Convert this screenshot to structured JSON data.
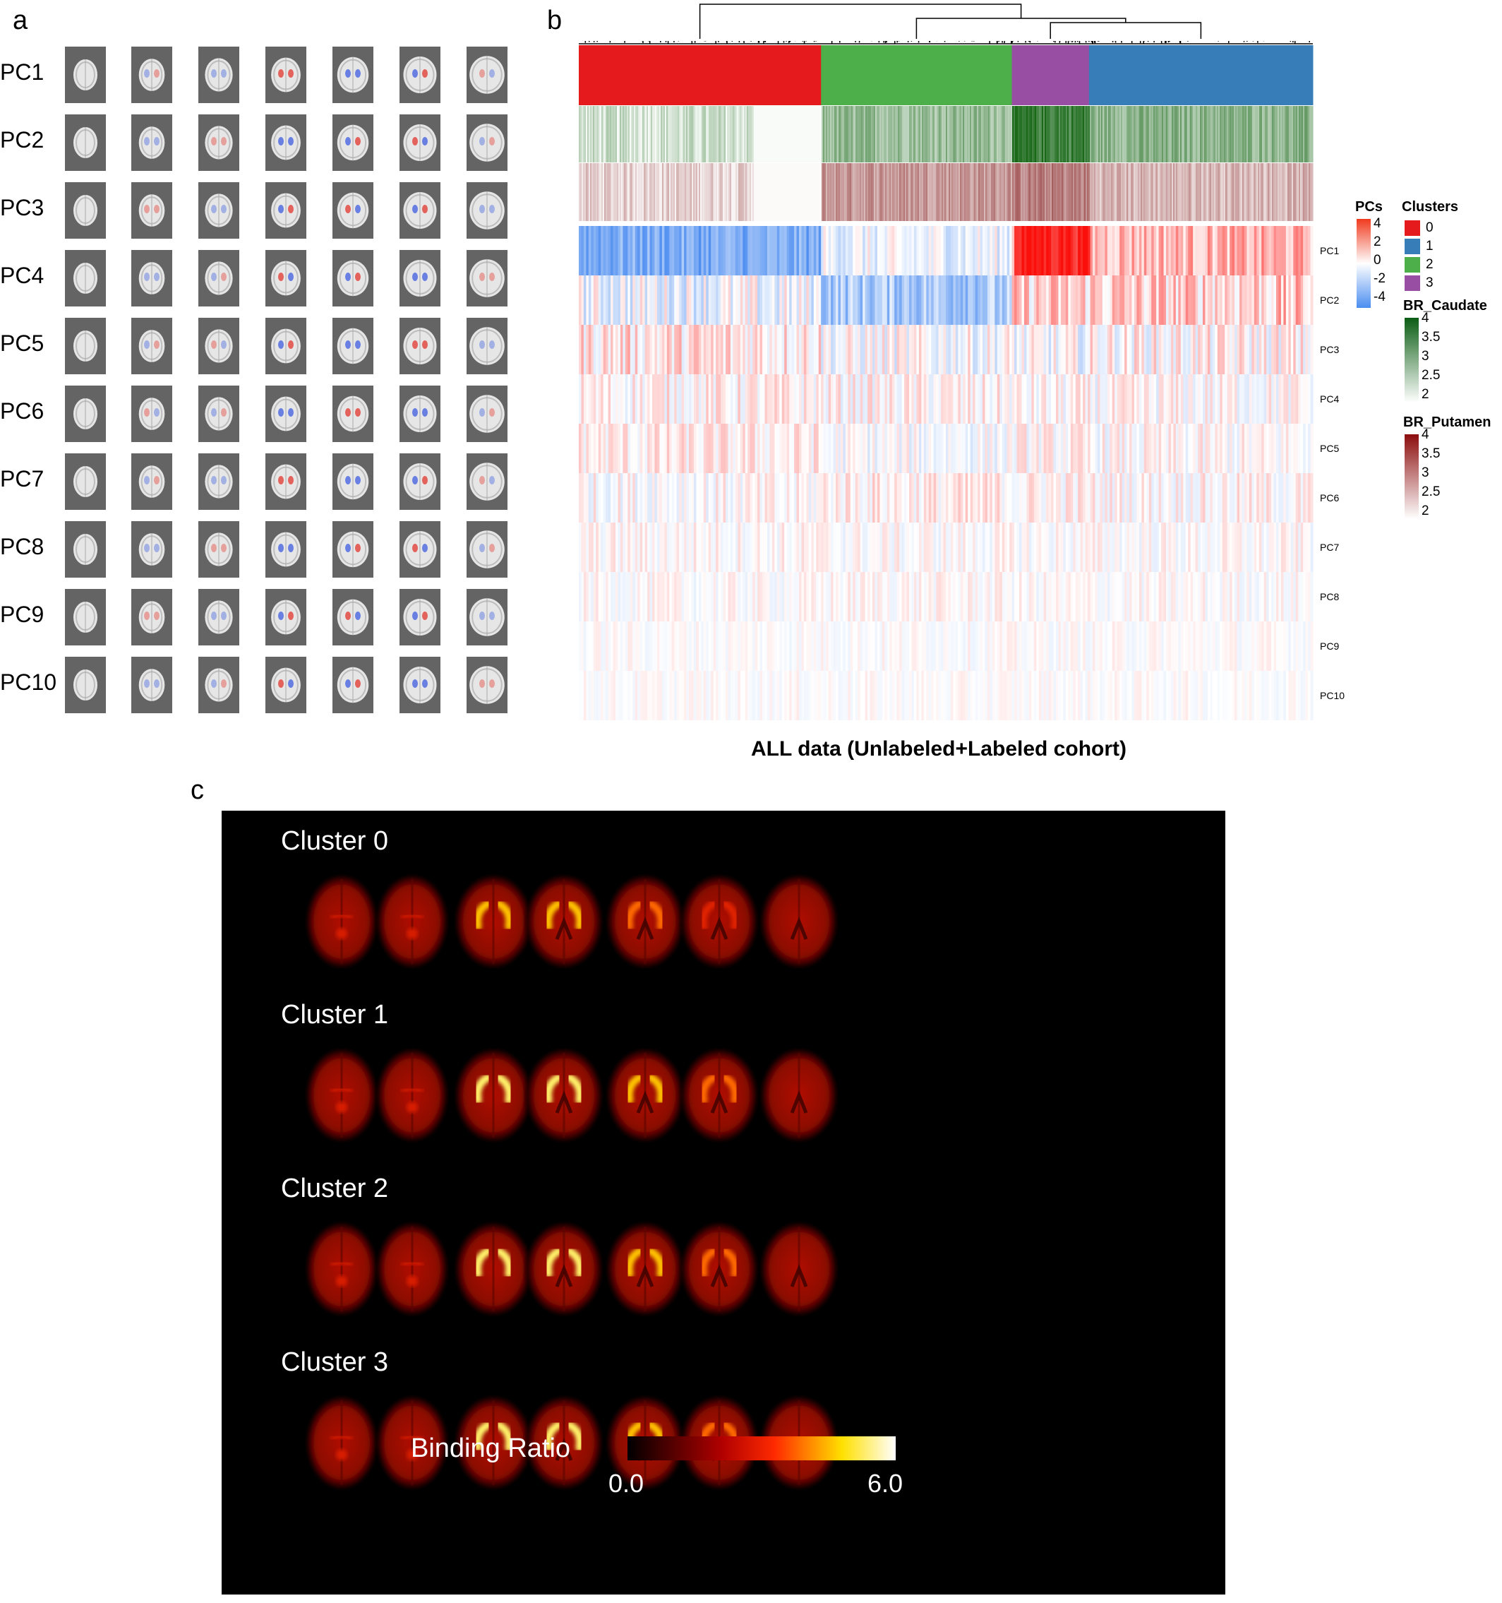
{
  "panel_a": {
    "letter": "a",
    "rows": [
      "PC1",
      "PC2",
      "PC3",
      "PC4",
      "PC5",
      "PC6",
      "PC7",
      "PC8",
      "PC9",
      "PC10"
    ]
  },
  "panel_b": {
    "letter": "b",
    "row_labels": [
      "PC1",
      "PC2",
      "PC3",
      "PC4",
      "PC5",
      "PC6",
      "PC7",
      "PC8",
      "PC9",
      "PC10"
    ],
    "caption": "ALL data (Unlabeled+Labeled cohort)",
    "legend": {
      "pcs_title": "PCs",
      "pcs_ticks": [
        "4",
        "2",
        "0",
        "-2",
        "-4"
      ],
      "clusters_title": "Clusters",
      "clusters": [
        {
          "label": "0",
          "color": "#e41a1c"
        },
        {
          "label": "1",
          "color": "#377eb8"
        },
        {
          "label": "2",
          "color": "#4daf4a"
        },
        {
          "label": "3",
          "color": "#984ea3"
        }
      ],
      "caudate_title": "BR_Caudate",
      "caudate_ticks": [
        "4",
        "3.5",
        "3",
        "2.5",
        "2"
      ],
      "putamen_title": "BR_Putamen",
      "putamen_ticks": [
        "4",
        "3.5",
        "3",
        "2.5",
        "2"
      ]
    },
    "cluster_order": [
      {
        "cluster": "0",
        "fraction": 0.33,
        "color": "#e41a1c"
      },
      {
        "cluster": "2",
        "fraction": 0.26,
        "color": "#4daf4a"
      },
      {
        "cluster": "3",
        "fraction": 0.105,
        "color": "#984ea3"
      },
      {
        "cluster": "1",
        "fraction": 0.305,
        "color": "#377eb8"
      }
    ]
  },
  "panel_c": {
    "letter": "c",
    "clusters": [
      "Cluster 0",
      "Cluster 1",
      "Cluster 2",
      "Cluster 3"
    ],
    "colorbar_title": "Binding Ratio",
    "colorbar_min": "0.0",
    "colorbar_max": "6.0",
    "intensity_by_cluster": [
      0.55,
      0.85,
      0.75,
      0.9
    ]
  }
}
